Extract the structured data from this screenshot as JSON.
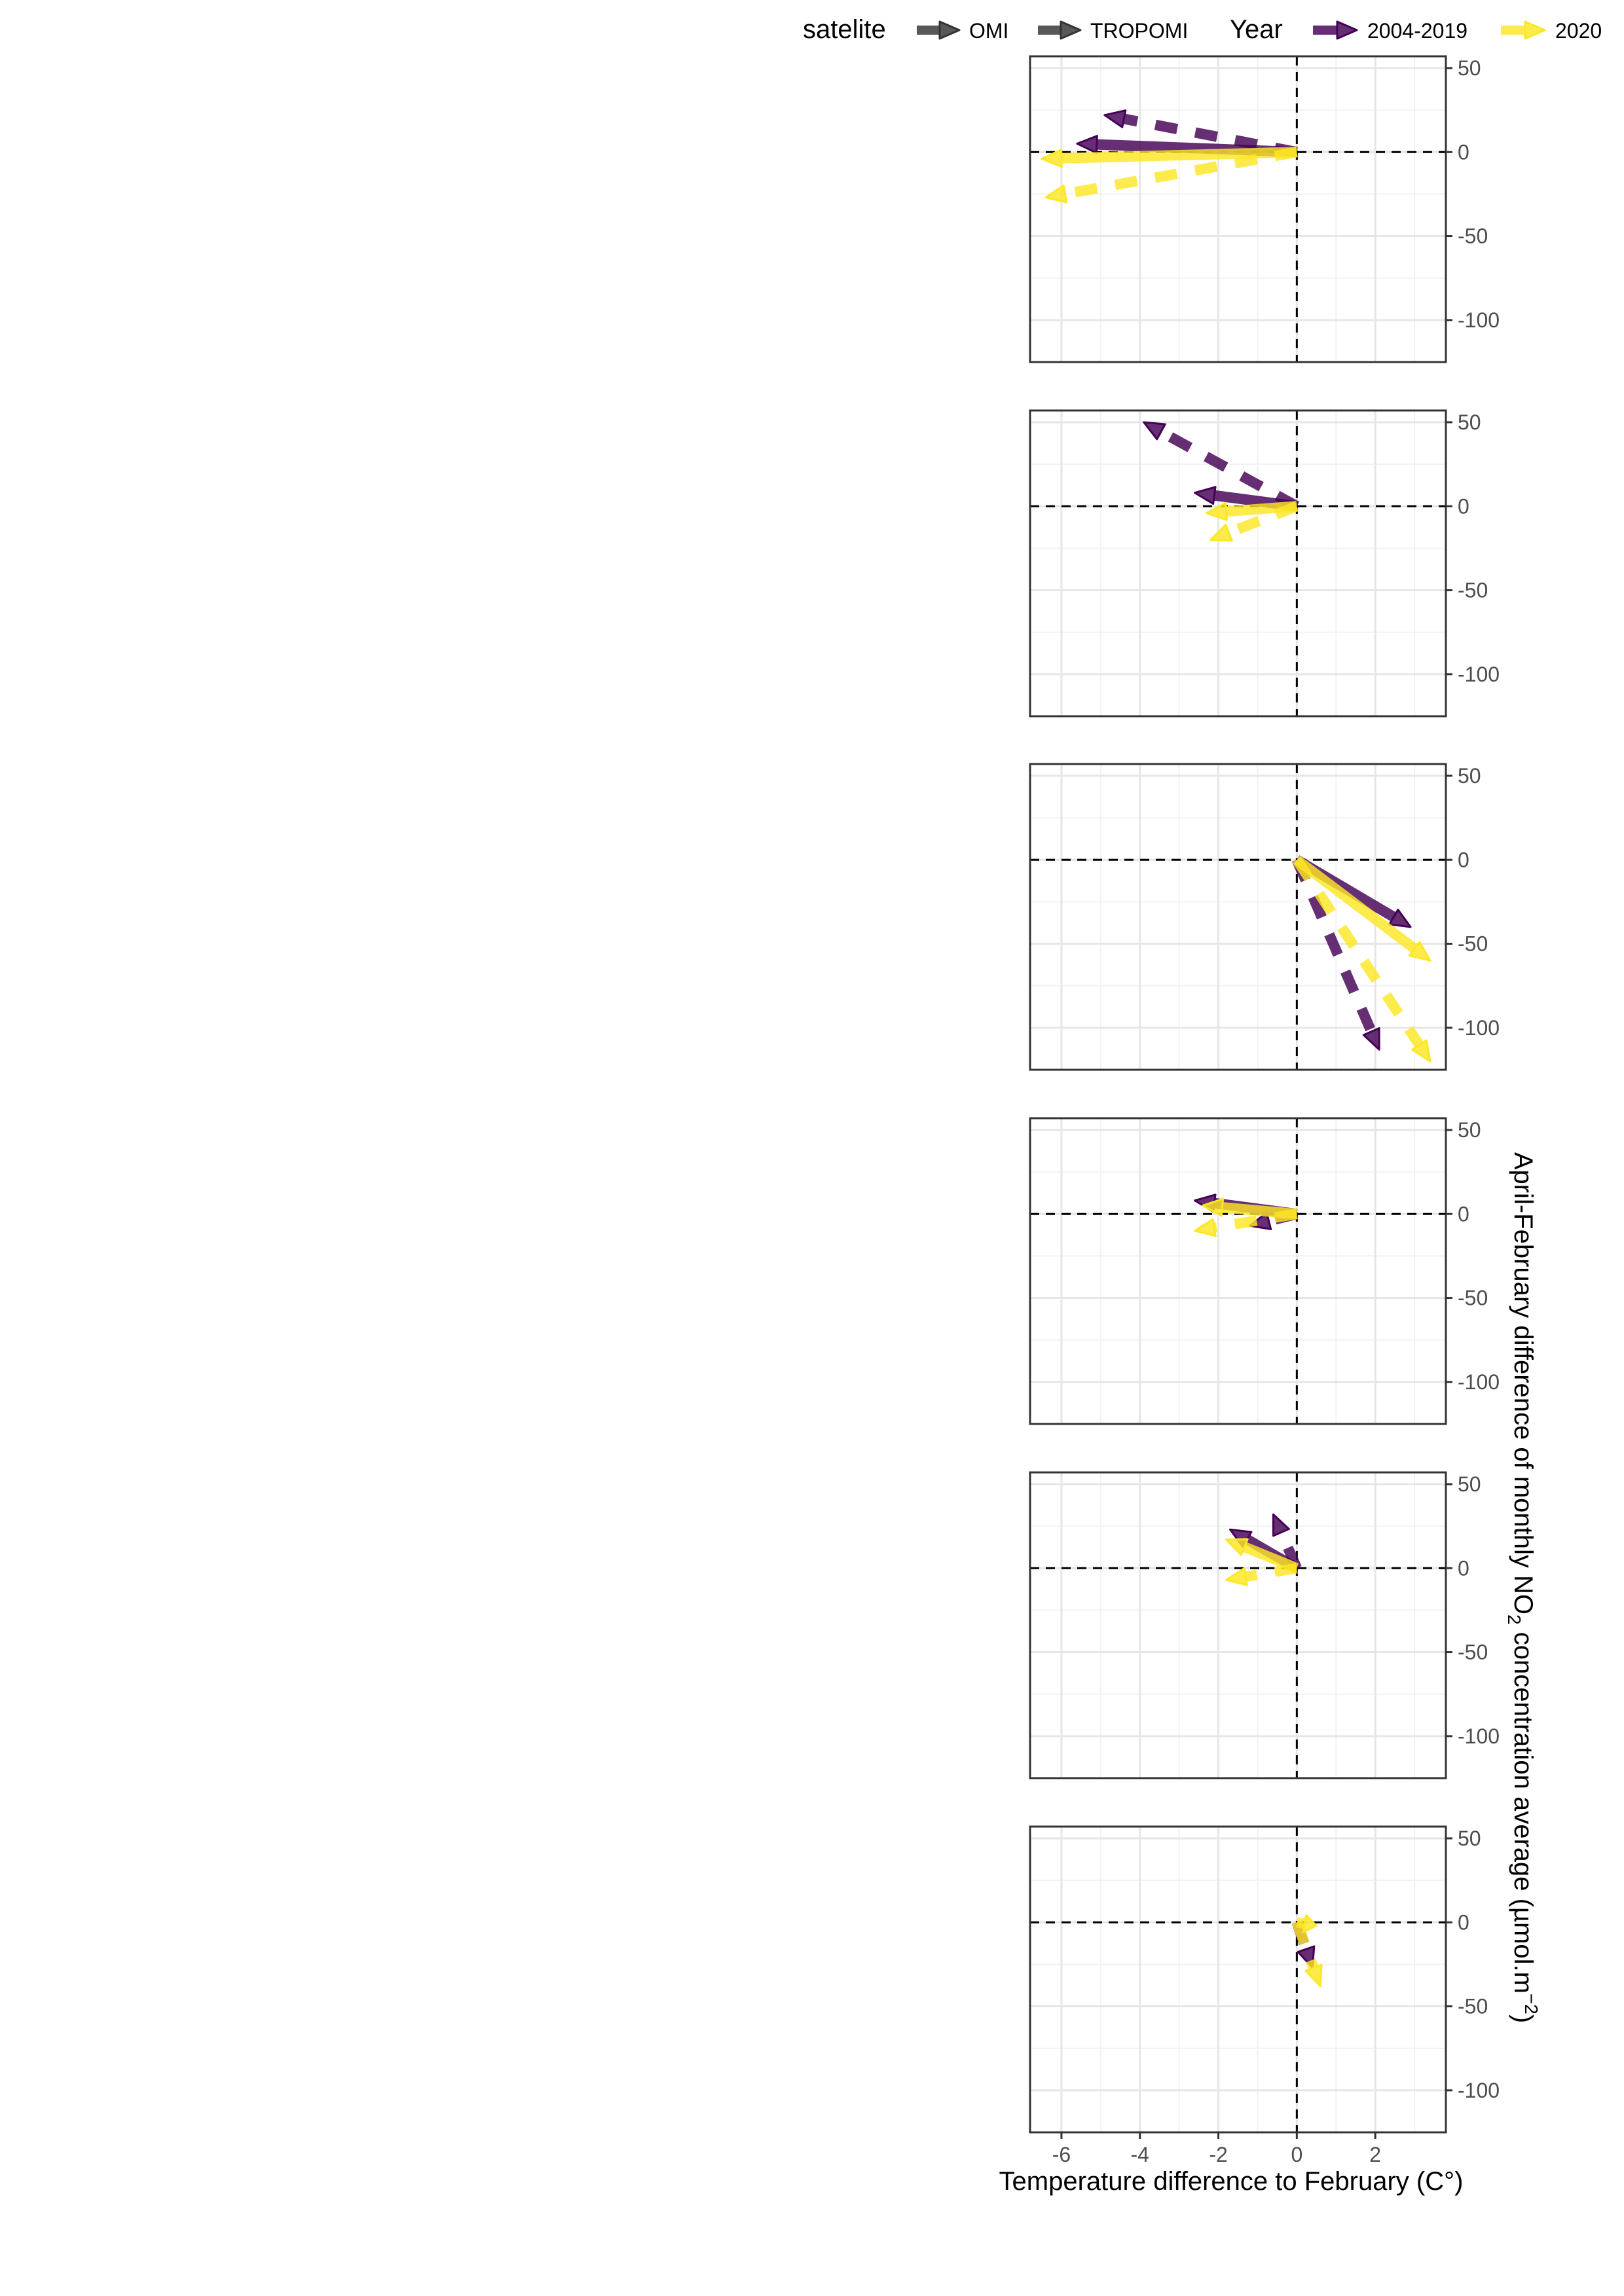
{
  "chart_data": {
    "type": "vector-field (arrow plot), 6 vertically stacked panels",
    "xlabel": "Temperature difference to February (C°)",
    "ylabel_main": "April-February difference of monthly NO",
    "ylabel_sub": "2",
    "ylabel_rest": " concentration average (µmol.m",
    "ylabel_sup": "−2",
    "ylabel_end": ")",
    "xlim": [
      -6.8,
      3.8
    ],
    "ylim": [
      -125,
      57
    ],
    "x_ticks": [
      -6,
      -4,
      -2,
      0,
      2
    ],
    "x_tick_labels": [
      "-6",
      "-4",
      "-2",
      "0",
      "2"
    ],
    "y_ticks": [
      50,
      0,
      -50,
      -100
    ],
    "y_tick_labels": [
      "50",
      "0",
      "-50",
      "-100"
    ],
    "grid": true,
    "reference_lines": {
      "x": 0,
      "y": 0,
      "style": "dashed"
    },
    "legend": {
      "placement": "top",
      "satelite_title": "satelite",
      "satelite_items": [
        {
          "label": "OMI",
          "linetype": "solid"
        },
        {
          "label": "TROPOMI",
          "linetype": "dashed"
        }
      ],
      "year_title": "Year",
      "year_items": [
        {
          "label": "2004-2019",
          "color": "#440154"
        },
        {
          "label": "2020",
          "color": "#FDE725"
        }
      ]
    },
    "colors": {
      "2004-2019": "#440154",
      "2020": "#FDE725"
    },
    "panels": [
      {
        "arrows": [
          {
            "satelite": "TROPOMI",
            "year": "2004-2019",
            "x_end": -4.9,
            "y_end": 22
          },
          {
            "satelite": "OMI",
            "year": "2004-2019",
            "x_end": -5.6,
            "y_end": 5
          },
          {
            "satelite": "TROPOMI",
            "year": "2020",
            "x_end": -6.4,
            "y_end": -27
          },
          {
            "satelite": "OMI",
            "year": "2020",
            "x_end": -6.5,
            "y_end": -4
          }
        ]
      },
      {
        "arrows": [
          {
            "satelite": "TROPOMI",
            "year": "2004-2019",
            "x_end": -3.9,
            "y_end": 50
          },
          {
            "satelite": "OMI",
            "year": "2004-2019",
            "x_end": -2.6,
            "y_end": 8
          },
          {
            "satelite": "TROPOMI",
            "year": "2020",
            "x_end": -2.2,
            "y_end": -20
          },
          {
            "satelite": "OMI",
            "year": "2020",
            "x_end": -2.3,
            "y_end": -4
          }
        ]
      },
      {
        "arrows": [
          {
            "satelite": "OMI",
            "year": "2004-2019",
            "x_end": 2.9,
            "y_end": -40
          },
          {
            "satelite": "TROPOMI",
            "year": "2004-2019",
            "x_end": 2.1,
            "y_end": -113
          },
          {
            "satelite": "OMI",
            "year": "2020",
            "x_end": 3.4,
            "y_end": -60
          },
          {
            "satelite": "TROPOMI",
            "year": "2020",
            "x_end": 3.4,
            "y_end": -120
          }
        ]
      },
      {
        "arrows": [
          {
            "satelite": "OMI",
            "year": "2004-2019",
            "x_end": -2.6,
            "y_end": 8
          },
          {
            "satelite": "TROPOMI",
            "year": "2004-2019",
            "x_end": -1.2,
            "y_end": -7
          },
          {
            "satelite": "OMI",
            "year": "2020",
            "x_end": -2.4,
            "y_end": 5
          },
          {
            "satelite": "TROPOMI",
            "year": "2020",
            "x_end": -2.6,
            "y_end": -10
          }
        ]
      },
      {
        "arrows": [
          {
            "satelite": "TROPOMI",
            "year": "2004-2019",
            "x_end": -0.6,
            "y_end": 32
          },
          {
            "satelite": "OMI",
            "year": "2004-2019",
            "x_end": -1.7,
            "y_end": 23
          },
          {
            "satelite": "OMI",
            "year": "2020",
            "x_end": -1.8,
            "y_end": 17
          },
          {
            "satelite": "TROPOMI",
            "year": "2020",
            "x_end": -1.8,
            "y_end": -7
          }
        ]
      },
      {
        "arrows": [
          {
            "satelite": "TROPOMI",
            "year": "2004-2019",
            "x_end": 0.4,
            "y_end": -27
          },
          {
            "satelite": "OMI",
            "year": "2020",
            "x_end": 0.5,
            "y_end": -2
          },
          {
            "satelite": "TROPOMI",
            "year": "2020",
            "x_end": 0.6,
            "y_end": -38
          }
        ]
      }
    ]
  }
}
